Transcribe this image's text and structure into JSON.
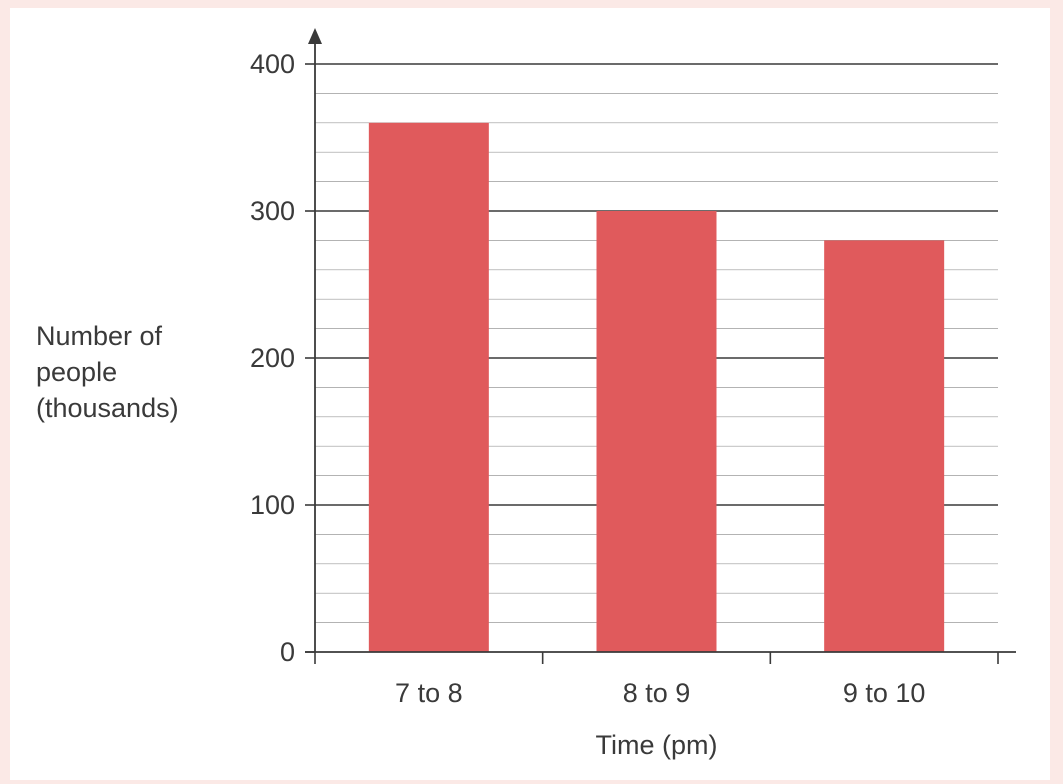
{
  "chart_data": {
    "type": "bar",
    "categories": [
      "7 to 8",
      "8 to 9",
      "9 to 10"
    ],
    "values": [
      360,
      300,
      280
    ],
    "title": "",
    "xlabel": "Time (pm)",
    "ylabel": "Number of\npeople\n(thousands)",
    "ylim": [
      0,
      400
    ],
    "yticks": [
      0,
      100,
      200,
      300,
      400
    ],
    "minor_step": 20,
    "grid": true,
    "bar_color": "#e05a5c",
    "axis_color": "#3a3a3a",
    "grid_color": "#9a9a9a"
  }
}
